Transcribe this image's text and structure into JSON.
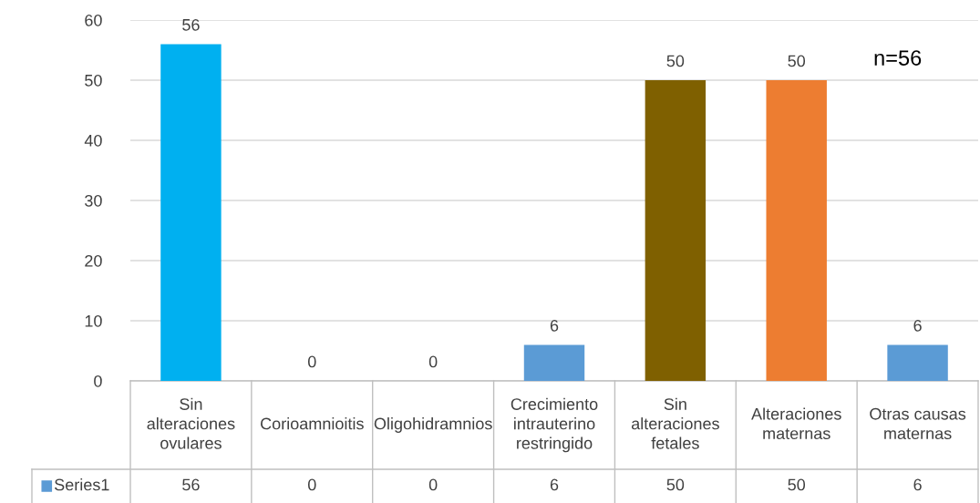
{
  "chart_data": {
    "type": "bar",
    "categories": [
      "Sin alteraciones ovulares",
      "Corioamnioitis",
      "Oligohidramnios",
      "Crecimiento intrauterino restringido",
      "Sin alteraciones fetales",
      "Alteraciones maternas",
      "Otras causas maternas"
    ],
    "series": [
      {
        "name": "Series1",
        "color": "#5b9bd5",
        "colors": [
          "#00b0f0",
          "#5b9bd5",
          "#5b9bd5",
          "#5b9bd5",
          "#7f6000",
          "#ed7d31",
          "#5b9bd5"
        ],
        "values": [
          56,
          0,
          0,
          6,
          50,
          50,
          6
        ],
        "value_labels": [
          "56",
          "0",
          "0",
          "6",
          "50",
          "50",
          "6"
        ]
      }
    ],
    "ylim": [
      0,
      60
    ],
    "yticks": [
      0,
      10,
      20,
      30,
      40,
      50,
      60
    ],
    "grid": "y",
    "data_labels": true,
    "legend": "bottom",
    "annotations": [
      "n=56",
      "56",
      "0",
      "0",
      "6",
      "50",
      "50",
      "6"
    ]
  }
}
